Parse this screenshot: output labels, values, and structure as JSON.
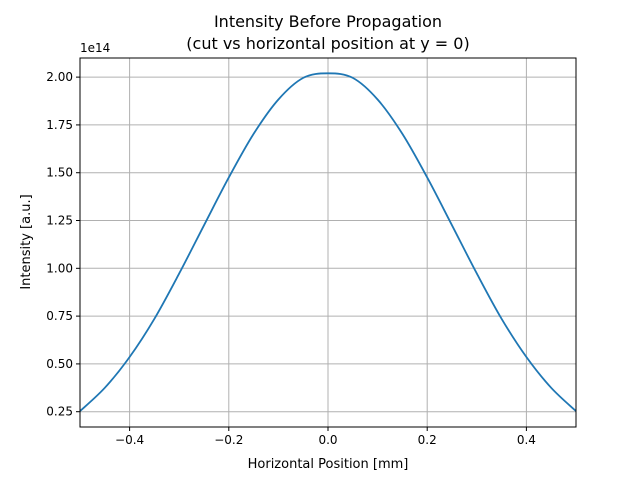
{
  "chart_data": {
    "type": "line",
    "title": "Intensity Before Propagation",
    "subtitle": "(cut vs horizontal position at y = 0)",
    "xlabel": "Horizontal Position [mm]",
    "ylabel": "Intensity [a.u.]",
    "y_offset_label": "1e14",
    "xlim": [
      -0.5,
      0.5
    ],
    "ylim": [
      0.17,
      2.1
    ],
    "xticks": [
      -0.4,
      -0.2,
      0.0,
      0.2,
      0.4
    ],
    "xtick_labels": [
      "−0.4",
      "−0.2",
      "0.0",
      "0.2",
      "0.4"
    ],
    "yticks": [
      0.25,
      0.5,
      0.75,
      1.0,
      1.25,
      1.5,
      1.75,
      2.0
    ],
    "ytick_labels": [
      "0.25",
      "0.50",
      "0.75",
      "1.00",
      "1.25",
      "1.50",
      "1.75",
      "2.00"
    ],
    "grid": true,
    "color": "#1f77b4",
    "series": [
      {
        "x": [
          -0.5,
          -0.45,
          -0.4,
          -0.35,
          -0.3,
          -0.25,
          -0.2,
          -0.15,
          -0.1,
          -0.05,
          0.0,
          0.05,
          0.1,
          0.15,
          0.2,
          0.25,
          0.3,
          0.35,
          0.4,
          0.45,
          0.5
        ],
        "values": [
          0.253,
          0.375,
          0.536,
          0.736,
          0.973,
          1.225,
          1.475,
          1.703,
          1.883,
          1.996,
          2.02,
          1.996,
          1.883,
          1.703,
          1.475,
          1.225,
          0.973,
          0.736,
          0.536,
          0.375,
          0.253
        ]
      }
    ]
  }
}
